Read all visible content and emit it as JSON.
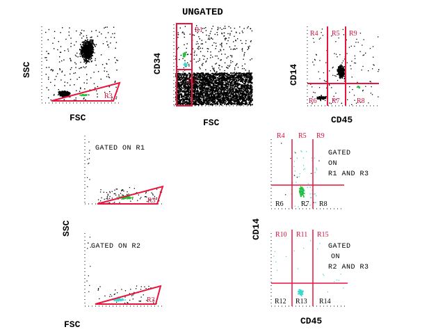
{
  "title": "UNGATED",
  "colors": {
    "gate": "#e8143c",
    "gate_label": "#d0103a",
    "green": "#22c03a",
    "cyan": "#3cd8d0",
    "dots": "#000000"
  },
  "top_left": {
    "x_label": "FSC",
    "y_label": "SSC",
    "gate": "R3"
  },
  "top_middle": {
    "x_label": "FSC",
    "y_label": "CD34",
    "gates": [
      "R1",
      "R2"
    ]
  },
  "top_right": {
    "x_label": "CD45",
    "y_label": "CD14",
    "regions": [
      "R4",
      "R5",
      "R9",
      "R6",
      "R7",
      "R8"
    ]
  },
  "bottom_left": {
    "y_label": "SSC",
    "x_label": "FSC",
    "panel1": {
      "caption": "GATED ON R1",
      "gate": "R3"
    },
    "panel2": {
      "caption": "GATED ON R2",
      "gate": "R3"
    }
  },
  "bottom_right": {
    "y_label": "CD14",
    "x_label": "CD45",
    "panel1": {
      "caption_lines": [
        "GATED",
        "ON",
        "R1 AND R3"
      ],
      "regions": [
        "R4",
        "R5",
        "R9",
        "R6",
        "R7",
        "R8"
      ]
    },
    "panel2": {
      "caption_lines": [
        "GATED",
        "ON",
        "R2 AND R3"
      ],
      "regions": [
        "R10",
        "R11",
        "R15",
        "R12",
        "R13",
        "R14"
      ]
    }
  }
}
